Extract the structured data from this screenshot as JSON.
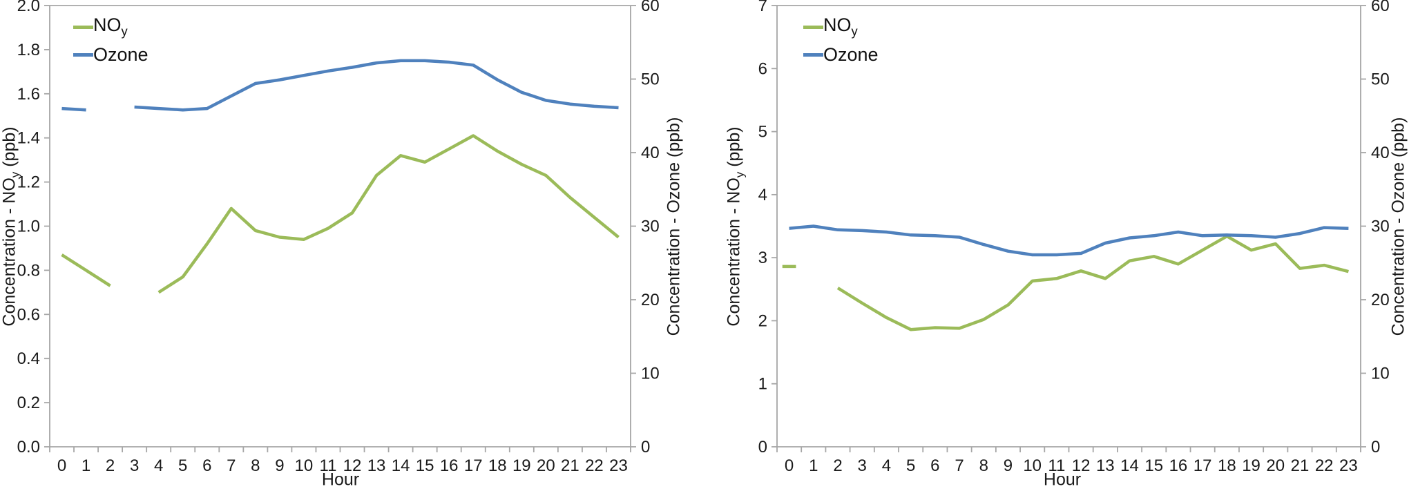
{
  "page_background": "#ffffff",
  "axis_color": "#a6a6a6",
  "chart_data": [
    {
      "type": "line",
      "xlabel": "Hour",
      "x": [
        0,
        1,
        2,
        3,
        4,
        5,
        6,
        7,
        8,
        9,
        10,
        11,
        12,
        13,
        14,
        15,
        16,
        17,
        18,
        19,
        20,
        21,
        22,
        23
      ],
      "x_ticks": [
        "0",
        "1",
        "2",
        "3",
        "4",
        "5",
        "6",
        "7",
        "8",
        "9",
        "10",
        "11",
        "12",
        "13",
        "14",
        "15",
        "16",
        "17",
        "18",
        "19",
        "20",
        "21",
        "22",
        "23"
      ],
      "left_axis": {
        "title_main": "Concentration - NO",
        "title_sub": "y",
        "title_suffix": " (ppb)",
        "min": 0,
        "max": 2,
        "ticks": [
          "0.0",
          "0.2",
          "0.4",
          "0.6",
          "0.8",
          "1.0",
          "1.2",
          "1.4",
          "1.6",
          "1.8",
          "2.0"
        ]
      },
      "right_axis": {
        "title": "Concentration - Ozone (ppb)",
        "min": 0,
        "max": 60,
        "ticks": [
          "0",
          "10",
          "20",
          "30",
          "40",
          "50",
          "60"
        ]
      },
      "grid": false,
      "legend_position": "top-left-inside",
      "series": [
        {
          "name": "NOy",
          "label_main": "NO",
          "label_sub": "y",
          "axis": "left",
          "color": "#9bbb59",
          "values": [
            0.87,
            0.8,
            0.73,
            null,
            0.7,
            0.77,
            0.92,
            1.08,
            0.98,
            0.95,
            0.94,
            0.99,
            1.06,
            1.23,
            1.32,
            1.29,
            1.35,
            1.41,
            1.34,
            1.28,
            1.23,
            1.13,
            1.04,
            0.95
          ]
        },
        {
          "name": "Ozone",
          "label_main": "Ozone",
          "label_sub": "",
          "axis": "right",
          "color": "#4f81bd",
          "values": [
            46.0,
            45.8,
            null,
            46.2,
            46.0,
            45.8,
            46.0,
            47.7,
            49.4,
            49.9,
            50.5,
            51.1,
            51.6,
            52.2,
            52.5,
            52.5,
            52.3,
            51.9,
            49.9,
            48.2,
            47.1,
            46.6,
            46.3,
            46.1
          ]
        }
      ]
    },
    {
      "type": "line",
      "xlabel": "Hour",
      "x": [
        0,
        1,
        2,
        3,
        4,
        5,
        6,
        7,
        8,
        9,
        10,
        11,
        12,
        13,
        14,
        15,
        16,
        17,
        18,
        19,
        20,
        21,
        22,
        23
      ],
      "x_ticks": [
        "0",
        "1",
        "2",
        "3",
        "4",
        "5",
        "6",
        "7",
        "8",
        "9",
        "10",
        "11",
        "12",
        "13",
        "14",
        "15",
        "16",
        "17",
        "18",
        "19",
        "20",
        "21",
        "22",
        "23"
      ],
      "left_axis": {
        "title_main": "Concentration - NO",
        "title_sub": "y",
        "title_suffix": " (ppb)",
        "min": 0,
        "max": 7,
        "ticks": [
          "0",
          "1",
          "2",
          "3",
          "4",
          "5",
          "6",
          "7"
        ]
      },
      "right_axis": {
        "title": "Concentration - Ozone (ppb)",
        "min": 0,
        "max": 60,
        "ticks": [
          "0",
          "10",
          "20",
          "30",
          "40",
          "50",
          "60"
        ]
      },
      "grid": false,
      "legend_position": "top-left-inside",
      "series": [
        {
          "name": "NOy",
          "label_main": "NO",
          "label_sub": "y",
          "axis": "left",
          "color": "#9bbb59",
          "values": [
            2.86,
            null,
            2.52,
            2.28,
            2.05,
            1.86,
            1.89,
            1.88,
            2.02,
            2.25,
            2.63,
            2.67,
            2.79,
            2.67,
            2.95,
            3.02,
            2.9,
            3.12,
            3.34,
            3.12,
            3.22,
            2.83,
            2.88,
            2.78
          ]
        },
        {
          "name": "Ozone",
          "label_main": "Ozone",
          "label_sub": "",
          "axis": "right",
          "color": "#4f81bd",
          "values": [
            29.7,
            30.0,
            29.5,
            29.4,
            29.2,
            28.8,
            28.7,
            28.5,
            27.5,
            26.6,
            26.1,
            26.1,
            26.3,
            27.7,
            28.4,
            28.7,
            29.2,
            28.7,
            28.8,
            28.7,
            28.5,
            29.0,
            29.8,
            29.7
          ]
        }
      ]
    }
  ]
}
